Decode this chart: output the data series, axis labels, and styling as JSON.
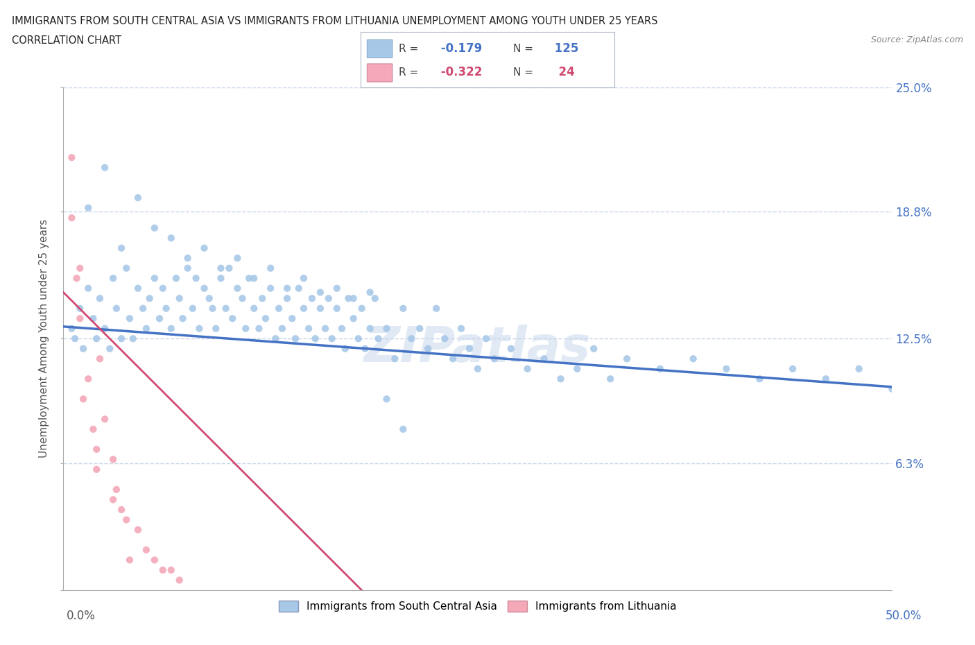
{
  "title_line1": "IMMIGRANTS FROM SOUTH CENTRAL ASIA VS IMMIGRANTS FROM LITHUANIA UNEMPLOYMENT AMONG YOUTH UNDER 25 YEARS",
  "title_line2": "CORRELATION CHART",
  "source": "Source: ZipAtlas.com",
  "ylabel": "Unemployment Among Youth under 25 years",
  "legend_label1": "Immigrants from South Central Asia",
  "legend_label2": "Immigrants from Lithuania",
  "R1": -0.179,
  "N1": 125,
  "R2": -0.322,
  "N2": 24,
  "xlim": [
    0.0,
    0.5
  ],
  "ylim": [
    0.0,
    0.25
  ],
  "yticks": [
    0.0,
    0.063,
    0.125,
    0.188,
    0.25
  ],
  "ytick_labels": [
    "",
    "6.3%",
    "12.5%",
    "18.8%",
    "25.0%"
  ],
  "xtick_labels_bottom": [
    "0.0%",
    "50.0%"
  ],
  "color_blue": "#a8c8e8",
  "color_pink": "#f4a8b8",
  "trendline_blue": "#4472c4",
  "trendline_pink": "#d04870",
  "watermark": "ZIPatlas",
  "background_color": "#ffffff",
  "grid_color": "#c8d4e8",
  "blue_x": [
    0.005,
    0.007,
    0.01,
    0.012,
    0.015,
    0.018,
    0.02,
    0.022,
    0.025,
    0.028,
    0.03,
    0.032,
    0.035,
    0.038,
    0.04,
    0.042,
    0.045,
    0.048,
    0.05,
    0.052,
    0.055,
    0.058,
    0.06,
    0.062,
    0.065,
    0.068,
    0.07,
    0.072,
    0.075,
    0.078,
    0.08,
    0.082,
    0.085,
    0.088,
    0.09,
    0.092,
    0.095,
    0.098,
    0.1,
    0.102,
    0.105,
    0.108,
    0.11,
    0.112,
    0.115,
    0.118,
    0.12,
    0.122,
    0.125,
    0.128,
    0.13,
    0.132,
    0.135,
    0.138,
    0.14,
    0.142,
    0.145,
    0.148,
    0.15,
    0.152,
    0.155,
    0.158,
    0.16,
    0.162,
    0.165,
    0.168,
    0.17,
    0.172,
    0.175,
    0.178,
    0.18,
    0.182,
    0.185,
    0.188,
    0.19,
    0.195,
    0.2,
    0.205,
    0.21,
    0.215,
    0.22,
    0.225,
    0.23,
    0.235,
    0.24,
    0.245,
    0.25,
    0.255,
    0.26,
    0.27,
    0.28,
    0.29,
    0.3,
    0.31,
    0.32,
    0.33,
    0.34,
    0.36,
    0.38,
    0.4,
    0.42,
    0.44,
    0.46,
    0.48,
    0.5,
    0.015,
    0.025,
    0.035,
    0.045,
    0.055,
    0.065,
    0.075,
    0.085,
    0.095,
    0.105,
    0.115,
    0.125,
    0.135,
    0.145,
    0.155,
    0.165,
    0.175,
    0.185,
    0.195,
    0.205
  ],
  "blue_y": [
    0.13,
    0.125,
    0.14,
    0.12,
    0.15,
    0.135,
    0.125,
    0.145,
    0.13,
    0.12,
    0.155,
    0.14,
    0.125,
    0.16,
    0.135,
    0.125,
    0.15,
    0.14,
    0.13,
    0.145,
    0.155,
    0.135,
    0.15,
    0.14,
    0.13,
    0.155,
    0.145,
    0.135,
    0.16,
    0.14,
    0.155,
    0.13,
    0.15,
    0.145,
    0.14,
    0.13,
    0.155,
    0.14,
    0.16,
    0.135,
    0.15,
    0.145,
    0.13,
    0.155,
    0.14,
    0.13,
    0.145,
    0.135,
    0.15,
    0.125,
    0.14,
    0.13,
    0.145,
    0.135,
    0.125,
    0.15,
    0.14,
    0.13,
    0.145,
    0.125,
    0.14,
    0.13,
    0.145,
    0.125,
    0.14,
    0.13,
    0.12,
    0.145,
    0.135,
    0.125,
    0.14,
    0.12,
    0.13,
    0.145,
    0.125,
    0.13,
    0.115,
    0.14,
    0.125,
    0.13,
    0.12,
    0.14,
    0.125,
    0.115,
    0.13,
    0.12,
    0.11,
    0.125,
    0.115,
    0.12,
    0.11,
    0.115,
    0.105,
    0.11,
    0.12,
    0.105,
    0.115,
    0.11,
    0.115,
    0.11,
    0.105,
    0.11,
    0.105,
    0.11,
    0.1,
    0.19,
    0.21,
    0.17,
    0.195,
    0.18,
    0.175,
    0.165,
    0.17,
    0.16,
    0.165,
    0.155,
    0.16,
    0.15,
    0.155,
    0.148,
    0.15,
    0.145,
    0.148,
    0.095,
    0.08
  ],
  "pink_x": [
    0.005,
    0.008,
    0.01,
    0.012,
    0.015,
    0.018,
    0.02,
    0.022,
    0.025,
    0.03,
    0.032,
    0.035,
    0.038,
    0.04,
    0.045,
    0.05,
    0.055,
    0.06,
    0.065,
    0.07,
    0.005,
    0.01,
    0.02,
    0.03
  ],
  "pink_y": [
    0.215,
    0.155,
    0.135,
    0.095,
    0.105,
    0.08,
    0.06,
    0.115,
    0.085,
    0.065,
    0.05,
    0.04,
    0.035,
    0.015,
    0.03,
    0.02,
    0.015,
    0.01,
    0.01,
    0.005,
    0.185,
    0.16,
    0.07,
    0.045
  ],
  "blue_trend_x0": 0.0,
  "blue_trend_y0": 0.131,
  "blue_trend_x1": 0.5,
  "blue_trend_y1": 0.101,
  "pink_trend_x0": 0.0,
  "pink_trend_y0": 0.148,
  "pink_trend_x1": 0.18,
  "pink_trend_y1": 0.0
}
